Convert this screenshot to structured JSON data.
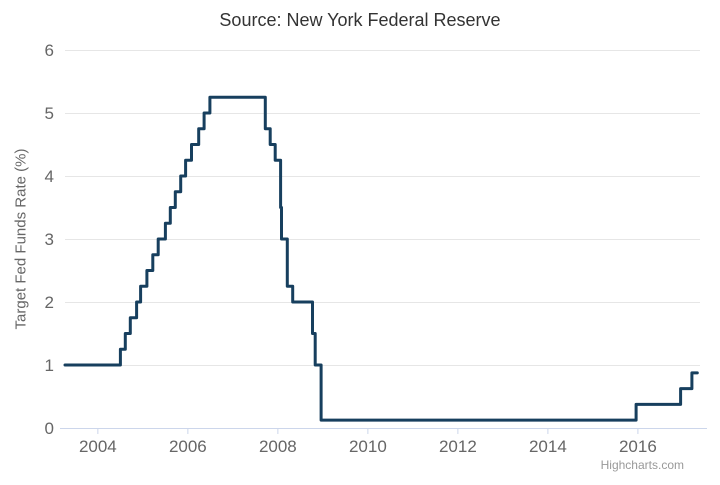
{
  "chart_data": {
    "type": "line",
    "step": "hold-value-until-next-change",
    "title": "Source: New York Federal Reserve",
    "xlabel": "",
    "ylabel": "Target Fed Funds Rate (%)",
    "credits": "Highcharts.com",
    "xlim": [
      2003.27,
      2017.38
    ],
    "ylim": [
      0,
      6
    ],
    "xticks": [
      2004,
      2006,
      2008,
      2010,
      2012,
      2014,
      2016
    ],
    "yticks": [
      0,
      1,
      2,
      3,
      4,
      5,
      6
    ],
    "grid": "horizontal-only",
    "legend_position": "none",
    "series": [
      {
        "name": "Target Fed Funds Rate (%)",
        "color": "#173f5e",
        "points": [
          [
            2003.27,
            1.0
          ],
          [
            2004.5,
            1.25
          ],
          [
            2004.61,
            1.5
          ],
          [
            2004.72,
            1.75
          ],
          [
            2004.86,
            2.0
          ],
          [
            2004.95,
            2.25
          ],
          [
            2005.09,
            2.5
          ],
          [
            2005.22,
            2.75
          ],
          [
            2005.34,
            3.0
          ],
          [
            2005.5,
            3.25
          ],
          [
            2005.61,
            3.5
          ],
          [
            2005.72,
            3.75
          ],
          [
            2005.84,
            4.0
          ],
          [
            2005.95,
            4.25
          ],
          [
            2006.08,
            4.5
          ],
          [
            2006.24,
            4.75
          ],
          [
            2006.36,
            5.0
          ],
          [
            2006.49,
            5.25
          ],
          [
            2007.72,
            4.75
          ],
          [
            2007.83,
            4.5
          ],
          [
            2007.94,
            4.25
          ],
          [
            2008.06,
            3.5
          ],
          [
            2008.08,
            3.0
          ],
          [
            2008.21,
            2.25
          ],
          [
            2008.33,
            2.0
          ],
          [
            2008.77,
            1.5
          ],
          [
            2008.83,
            1.0
          ],
          [
            2008.96,
            0.125
          ],
          [
            2015.96,
            0.375
          ],
          [
            2016.95,
            0.625
          ],
          [
            2017.2,
            0.875
          ],
          [
            2017.32,
            0.875
          ]
        ]
      }
    ],
    "colors": {
      "line": "#173f5e",
      "grid": "#e6e6e6",
      "axis_line": "#ccd6eb",
      "tick": "#ccd6eb",
      "labels": "#666666",
      "title": "#333333",
      "credits": "#999999",
      "background": "#ffffff"
    }
  }
}
